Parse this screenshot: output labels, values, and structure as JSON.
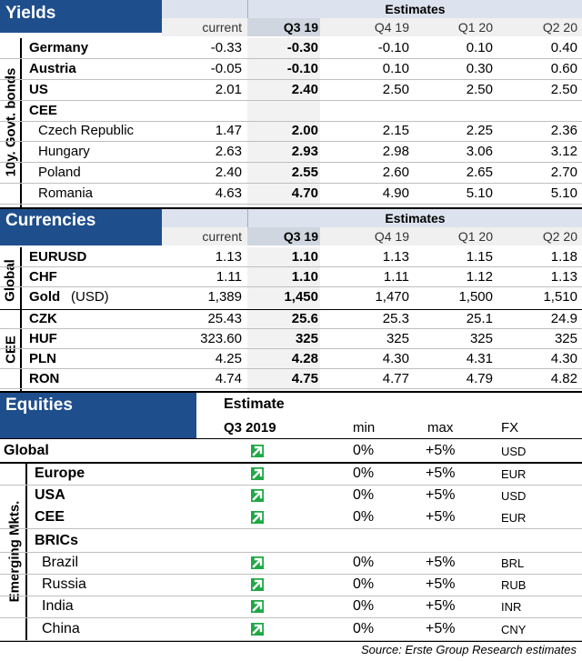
{
  "yields": {
    "title": "Yields",
    "estimates_label": "Estimates",
    "side_label": "10y. Govt. bonds",
    "columns": [
      "current",
      "Q3 19",
      "Q4 19",
      "Q1 20",
      "Q2 20"
    ],
    "rows": [
      {
        "name": "Germany",
        "values": [
          "-0.33",
          "-0.30",
          "-0.10",
          "0.10",
          "0.40"
        ]
      },
      {
        "name": "Austria",
        "values": [
          "-0.05",
          "-0.10",
          "0.10",
          "0.30",
          "0.60"
        ]
      },
      {
        "name": "US",
        "values": [
          "2.01",
          "2.40",
          "2.50",
          "2.50",
          "2.50"
        ]
      },
      {
        "name": "CEE",
        "values": [
          "",
          "",
          "",
          "",
          ""
        ]
      },
      {
        "name": "Czech Republic",
        "values": [
          "1.47",
          "2.00",
          "2.15",
          "2.25",
          "2.36"
        ]
      },
      {
        "name": "Hungary",
        "values": [
          "2.63",
          "2.93",
          "2.98",
          "3.06",
          "3.12"
        ]
      },
      {
        "name": "Poland",
        "values": [
          "2.40",
          "2.55",
          "2.60",
          "2.65",
          "2.70"
        ]
      },
      {
        "name": "Romania",
        "values": [
          "4.63",
          "4.70",
          "4.90",
          "5.10",
          "5.10"
        ]
      }
    ]
  },
  "currencies": {
    "title": "Currencies",
    "estimates_label": "Estimates",
    "global_label": "Global",
    "cee_label": "CEE",
    "columns": [
      "current",
      "Q3 19",
      "Q4 19",
      "Q1 20",
      "Q2 20"
    ],
    "rows": [
      {
        "name": "EURUSD",
        "suffix": "",
        "values": [
          "1.13",
          "1.10",
          "1.13",
          "1.15",
          "1.18"
        ]
      },
      {
        "name": "CHF",
        "suffix": "",
        "values": [
          "1.11",
          "1.10",
          "1.11",
          "1.12",
          "1.13"
        ]
      },
      {
        "name": "Gold",
        "suffix": "(USD)",
        "values": [
          "1,389",
          "1,450",
          "1,470",
          "1,500",
          "1,510"
        ]
      },
      {
        "name": "CZK",
        "suffix": "",
        "values": [
          "25.43",
          "25.6",
          "25.3",
          "25.1",
          "24.9"
        ]
      },
      {
        "name": "HUF",
        "suffix": "",
        "values": [
          "323.60",
          "325",
          "325",
          "325",
          "325"
        ]
      },
      {
        "name": "PLN",
        "suffix": "",
        "values": [
          "4.25",
          "4.28",
          "4.30",
          "4.31",
          "4.30"
        ]
      },
      {
        "name": "RON",
        "suffix": "",
        "values": [
          "4.74",
          "4.75",
          "4.77",
          "4.79",
          "4.82"
        ]
      }
    ]
  },
  "equities": {
    "title": "Equities",
    "estimate_label": "Estimate",
    "columns": [
      "Q3 2019",
      "min",
      "max",
      "FX"
    ],
    "side_label": "Emerging Mkts.",
    "rows": [
      {
        "name": "Global",
        "min": "0%",
        "max": "+5%",
        "fx": "USD",
        "trend": "up"
      },
      {
        "name": "Europe",
        "min": "0%",
        "max": "+5%",
        "fx": "EUR",
        "trend": "up"
      },
      {
        "name": "USA",
        "min": "0%",
        "max": "+5%",
        "fx": "USD",
        "trend": "up"
      },
      {
        "name": "CEE",
        "min": "0%",
        "max": "+5%",
        "fx": "EUR",
        "trend": "up"
      },
      {
        "name": "BRICs",
        "min": "",
        "max": "",
        "fx": "",
        "trend": ""
      },
      {
        "name": "Brazil",
        "min": "0%",
        "max": "+5%",
        "fx": "BRL",
        "trend": "up"
      },
      {
        "name": "Russia",
        "min": "0%",
        "max": "+5%",
        "fx": "RUB",
        "trend": "up"
      },
      {
        "name": "India",
        "min": "0%",
        "max": "+5%",
        "fx": "INR",
        "trend": "up"
      },
      {
        "name": "China",
        "min": "0%",
        "max": "+5%",
        "fx": "CNY",
        "trend": "up"
      }
    ]
  },
  "source": "Source: Erste Group Research estimates"
}
